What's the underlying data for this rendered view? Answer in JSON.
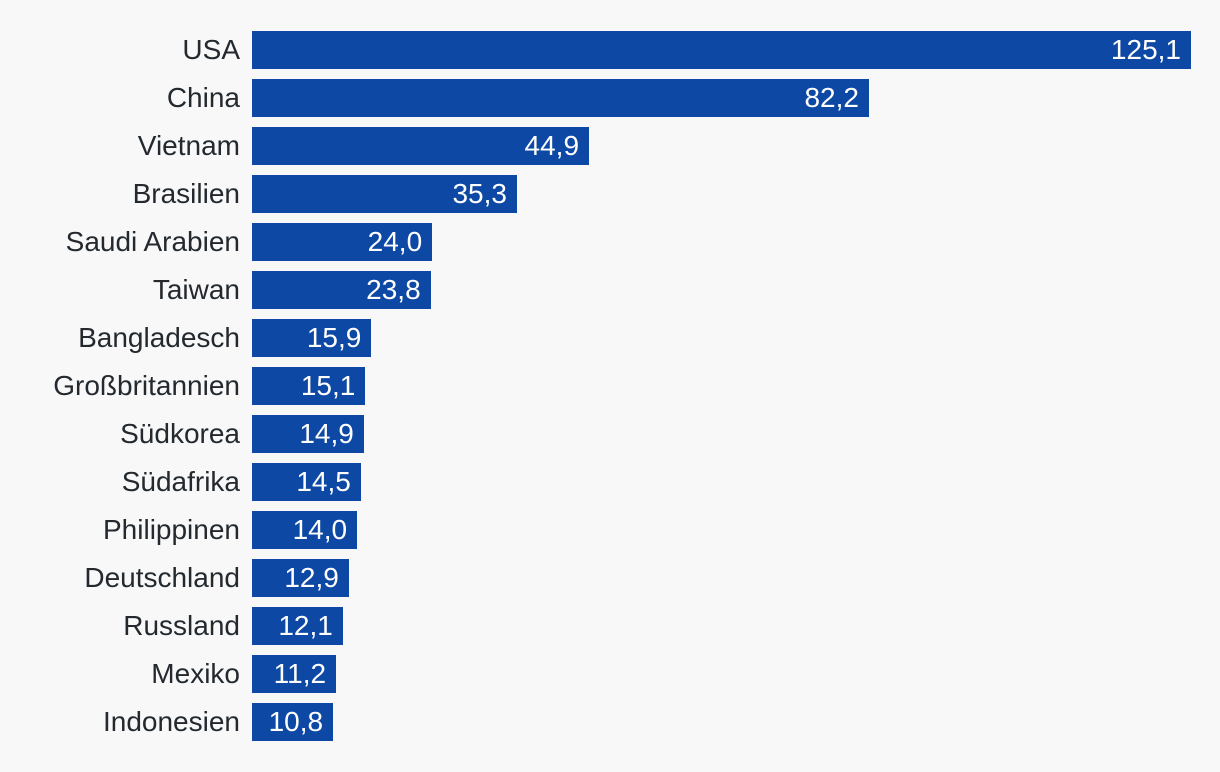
{
  "page": {
    "background_color": "#f8f8f8"
  },
  "chart_data": {
    "type": "bar",
    "orientation": "horizontal",
    "title": "",
    "xlabel": "",
    "ylabel": "",
    "categories": [
      "USA",
      "China",
      "Vietnam",
      "Brasilien",
      "Saudi Arabien",
      "Taiwan",
      "Bangladesch",
      "Großbritannien",
      "Südkorea",
      "Südafrika",
      "Philippinen",
      "Deutschland",
      "Russland",
      "Mexiko",
      "Indonesien"
    ],
    "values": [
      125.1,
      82.2,
      44.9,
      35.3,
      24.0,
      23.8,
      15.9,
      15.1,
      14.9,
      14.5,
      14.0,
      12.9,
      12.1,
      11.2,
      10.8
    ],
    "value_labels": [
      "125,1",
      "82,2",
      "44,9",
      "35,3",
      "24,0",
      "23,8",
      "15,9",
      "15,1",
      "14,9",
      "14,5",
      "14,0",
      "12,9",
      "12,1",
      "11,2",
      "10,8"
    ],
    "xlim": [
      0,
      125.1
    ],
    "grid": false,
    "legend": false,
    "decimal_separator": ",",
    "bar_color": "#0d48a4",
    "value_label_color": "#ffffff",
    "category_label_color": "#23292e",
    "background_color": "#f8f8f8"
  }
}
